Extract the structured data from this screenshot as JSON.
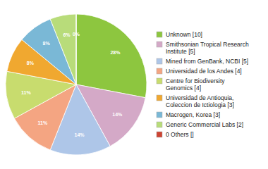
{
  "chart_data": {
    "type": "pie",
    "categories": [
      "Unknown [10]",
      "Smithsonian Tropical Research\nInstitute [5]",
      "Mined from GenBank, NCBI [5]",
      "Universidad de los Andes [4]",
      "Centre for Biodiversity\nGenomics [4]",
      "Universidad de Antioquia,\nColeccion de Ictiologia [3]",
      "Macrogen, Korea [3]",
      "Generic Commercial Labs [2]",
      "0 Others []"
    ],
    "values": [
      28,
      14,
      14,
      11,
      11,
      8,
      8,
      6,
      0
    ],
    "value_labels": [
      "28%",
      "14%",
      "14%",
      "11%",
      "11%",
      "8%",
      "8%",
      "6%",
      "0%"
    ],
    "colors": [
      "#8dc63f",
      "#d4a9c7",
      "#aec6e8",
      "#f4a582",
      "#c8dc6e",
      "#f0a830",
      "#7ab8d6",
      "#b8dc7a",
      "#cc4433"
    ],
    "data_labels": true,
    "legend": "right"
  }
}
